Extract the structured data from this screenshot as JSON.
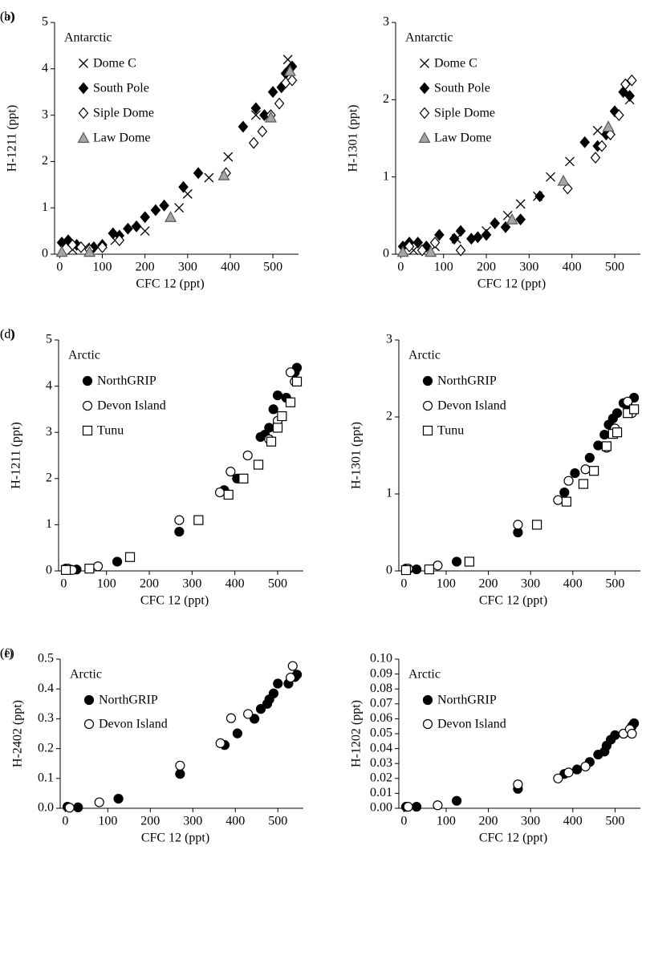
{
  "chart_data": [
    {
      "type": "scatter",
      "label": "(a)",
      "legend_title": "Antarctic",
      "x_label": "CFC 12 (ppt)",
      "y_label": "H-1211 (ppt)",
      "xlim": [
        -12,
        560
      ],
      "xticks": [
        0,
        100,
        200,
        300,
        400,
        500
      ],
      "ylim": [
        0,
        5
      ],
      "yticks": [
        0,
        1,
        2,
        3,
        4,
        5
      ],
      "series": [
        {
          "name": "Dome C",
          "marker": "cross",
          "color": "#000000",
          "fill": "none",
          "x": [
            30,
            60,
            130,
            200,
            280,
            300,
            350,
            395,
            460,
            535,
            540
          ],
          "y": [
            0.1,
            0.15,
            0.3,
            0.5,
            1.0,
            1.3,
            1.65,
            2.1,
            3.0,
            4.2,
            3.9
          ]
        },
        {
          "name": "South Pole",
          "marker": "diamond",
          "color": "#000000",
          "fill": "#000000",
          "x": [
            5,
            20,
            40,
            80,
            100,
            125,
            140,
            160,
            180,
            200,
            225,
            245,
            290,
            325,
            430,
            460,
            480,
            500,
            520,
            530,
            540,
            545
          ],
          "y": [
            0.25,
            0.3,
            0.2,
            0.15,
            0.2,
            0.45,
            0.4,
            0.55,
            0.6,
            0.8,
            0.95,
            1.05,
            1.45,
            1.75,
            2.75,
            3.15,
            3.0,
            3.5,
            3.6,
            3.9,
            4.0,
            4.05
          ]
        },
        {
          "name": "Siple Dome",
          "marker": "diamond",
          "color": "#000000",
          "fill": "#ffffff",
          "x": [
            30,
            50,
            70,
            100,
            140,
            390,
            455,
            475,
            495,
            515,
            530,
            545
          ],
          "y": [
            0.2,
            0.15,
            0.1,
            0.15,
            0.3,
            1.75,
            2.4,
            2.65,
            3.0,
            3.25,
            3.7,
            3.75
          ]
        },
        {
          "name": "Law Dome",
          "marker": "triangle",
          "color": "#595959",
          "fill": "#a6a6a6",
          "x": [
            5,
            70,
            260,
            385,
            495,
            540
          ],
          "y": [
            0.05,
            0.05,
            0.8,
            1.7,
            2.95,
            3.95
          ]
        }
      ]
    },
    {
      "type": "scatter",
      "label": "(b)",
      "legend_title": "Antarctic",
      "x_label": "CFC 12 (ppt)",
      "y_label": "H-1301 (ppt)",
      "xlim": [
        -12,
        560
      ],
      "xticks": [
        0,
        100,
        200,
        300,
        400,
        500
      ],
      "ylim": [
        0,
        3
      ],
      "yticks": [
        0,
        1,
        2,
        3
      ],
      "series": [
        {
          "name": "Dome C",
          "marker": "cross",
          "color": "#000000",
          "fill": "none",
          "x": [
            30,
            80,
            130,
            200,
            250,
            280,
            320,
            350,
            395,
            460,
            535
          ],
          "y": [
            0.05,
            0.1,
            0.2,
            0.3,
            0.5,
            0.65,
            0.75,
            1.0,
            1.2,
            1.6,
            2.0
          ]
        },
        {
          "name": "South Pole",
          "marker": "diamond",
          "color": "#000000",
          "fill": "#000000",
          "x": [
            5,
            20,
            40,
            60,
            90,
            125,
            140,
            165,
            180,
            200,
            220,
            245,
            280,
            325,
            430,
            460,
            480,
            500,
            520,
            535
          ],
          "y": [
            0.1,
            0.15,
            0.15,
            0.1,
            0.25,
            0.2,
            0.3,
            0.2,
            0.22,
            0.25,
            0.4,
            0.35,
            0.45,
            0.75,
            1.45,
            1.4,
            1.55,
            1.85,
            2.1,
            2.05
          ]
        },
        {
          "name": "Siple Dome",
          "marker": "diamond",
          "color": "#000000",
          "fill": "#ffffff",
          "x": [
            20,
            50,
            80,
            140,
            390,
            455,
            470,
            490,
            510,
            525,
            540
          ],
          "y": [
            0.1,
            0.05,
            0.15,
            0.05,
            0.85,
            1.25,
            1.4,
            1.55,
            1.8,
            2.2,
            2.25
          ]
        },
        {
          "name": "Law Dome",
          "marker": "triangle",
          "color": "#595959",
          "fill": "#a6a6a6",
          "x": [
            5,
            70,
            260,
            380,
            485
          ],
          "y": [
            0.03,
            0.03,
            0.45,
            0.95,
            1.65
          ]
        }
      ]
    },
    {
      "type": "scatter",
      "label": "(c)",
      "legend_title": "Arctic",
      "x_label": "CFC 12 (ppt)",
      "y_label": "H-1211 (ppt)",
      "xlim": [
        -12,
        560
      ],
      "xticks": [
        0,
        100,
        200,
        300,
        400,
        500
      ],
      "ylim": [
        0,
        5
      ],
      "yticks": [
        0,
        1,
        2,
        3,
        4,
        5
      ],
      "series": [
        {
          "name": "NorthGRIP",
          "marker": "circle",
          "color": "#000000",
          "fill": "#000000",
          "x": [
            5,
            10,
            15,
            30,
            125,
            270,
            375,
            405,
            460,
            470,
            480,
            490,
            500,
            520,
            540,
            545
          ],
          "y": [
            0.05,
            0.03,
            0.03,
            0.03,
            0.2,
            0.85,
            1.75,
            2.0,
            2.9,
            2.95,
            3.1,
            3.5,
            3.8,
            3.75,
            4.3,
            4.4
          ]
        },
        {
          "name": "Devon Island",
          "marker": "circle",
          "color": "#000000",
          "fill": "#ffffff",
          "x": [
            10,
            20,
            80,
            270,
            365,
            390,
            430,
            480,
            500,
            530,
            540
          ],
          "y": [
            0.05,
            0.02,
            0.1,
            1.1,
            1.7,
            2.15,
            2.5,
            2.85,
            3.25,
            4.3,
            4.1
          ]
        },
        {
          "name": "Tunu",
          "marker": "square",
          "color": "#000000",
          "fill": "#ffffff",
          "x": [
            5,
            60,
            155,
            315,
            385,
            420,
            455,
            485,
            500,
            510,
            530,
            545
          ],
          "y": [
            0.02,
            0.05,
            0.3,
            1.1,
            1.65,
            2.0,
            2.3,
            2.8,
            3.1,
            3.35,
            3.65,
            4.1
          ]
        }
      ]
    },
    {
      "type": "scatter",
      "label": "(d)",
      "legend_title": "Arctic",
      "x_label": "CFC 12 (ppt)",
      "y_label": "H-1301 (ppt)",
      "xlim": [
        -12,
        560
      ],
      "xticks": [
        0,
        100,
        200,
        300,
        400,
        500
      ],
      "ylim": [
        0,
        3
      ],
      "yticks": [
        0,
        1,
        2,
        3
      ],
      "series": [
        {
          "name": "NorthGRIP",
          "marker": "circle",
          "color": "#000000",
          "fill": "#000000",
          "x": [
            5,
            10,
            30,
            125,
            270,
            380,
            405,
            440,
            460,
            475,
            485,
            495,
            505,
            520,
            530,
            545
          ],
          "y": [
            0.03,
            0.02,
            0.02,
            0.12,
            0.5,
            1.02,
            1.27,
            1.47,
            1.63,
            1.77,
            1.9,
            1.98,
            2.05,
            2.18,
            2.15,
            2.25
          ]
        },
        {
          "name": "Devon Island",
          "marker": "circle",
          "color": "#000000",
          "fill": "#ffffff",
          "x": [
            10,
            80,
            270,
            365,
            390,
            430,
            480,
            500,
            530,
            540
          ],
          "y": [
            0.03,
            0.07,
            0.6,
            0.92,
            1.17,
            1.32,
            1.6,
            1.85,
            2.2,
            2.05
          ]
        },
        {
          "name": "Tunu",
          "marker": "square",
          "color": "#000000",
          "fill": "#ffffff",
          "x": [
            5,
            60,
            155,
            315,
            385,
            425,
            450,
            480,
            495,
            505,
            530,
            545
          ],
          "y": [
            0.01,
            0.02,
            0.12,
            0.6,
            0.9,
            1.13,
            1.3,
            1.62,
            1.78,
            1.8,
            2.05,
            2.1
          ]
        }
      ]
    },
    {
      "type": "scatter",
      "label": "(e)",
      "legend_title": "Arctic",
      "x_label": "CFC 12 (ppt)",
      "y_label": "H-2402 (ppt)",
      "xlim": [
        -12,
        560
      ],
      "xticks": [
        0,
        100,
        200,
        300,
        400,
        500
      ],
      "ylim": [
        0,
        0.5
      ],
      "yticks": [
        {
          "value": 0,
          "label": "0.0"
        },
        0.1,
        0.2,
        0.3,
        0.4,
        0.5
      ],
      "series": [
        {
          "name": "NorthGRIP",
          "marker": "circle",
          "color": "#000000",
          "fill": "#000000",
          "x": [
            5,
            30,
            125,
            270,
            375,
            405,
            445,
            460,
            475,
            480,
            490,
            500,
            525,
            540,
            545
          ],
          "y": [
            0.005,
            0.003,
            0.032,
            0.115,
            0.212,
            0.251,
            0.3,
            0.333,
            0.35,
            0.365,
            0.385,
            0.418,
            0.418,
            0.44,
            0.448
          ]
        },
        {
          "name": "Devon Island",
          "marker": "circle",
          "color": "#000000",
          "fill": "#ffffff",
          "x": [
            10,
            80,
            270,
            365,
            390,
            430,
            530,
            535
          ],
          "y": [
            0.002,
            0.02,
            0.143,
            0.218,
            0.302,
            0.316,
            0.438,
            0.477
          ]
        }
      ]
    },
    {
      "type": "scatter",
      "label": "(f)",
      "legend_title": "Arctic",
      "x_label": "CFC 12 (ppt)",
      "y_label": "H-1202 (ppt)",
      "xlim": [
        -12,
        560
      ],
      "xticks": [
        0,
        100,
        200,
        300,
        400,
        500
      ],
      "ylim": [
        0,
        0.1
      ],
      "yticks": [
        {
          "value": 0,
          "label": "0.00"
        },
        {
          "value": 0.01,
          "label": "0.01"
        },
        {
          "value": 0.02,
          "label": "0.02"
        },
        {
          "value": 0.03,
          "label": "0.03"
        },
        {
          "value": 0.04,
          "label": "0.04"
        },
        {
          "value": 0.05,
          "label": "0.05"
        },
        {
          "value": 0.06,
          "label": "0.06"
        },
        {
          "value": 0.07,
          "label": "0.07"
        },
        {
          "value": 0.08,
          "label": "0.08"
        },
        {
          "value": 0.09,
          "label": "0.09"
        },
        {
          "value": 0.1,
          "label": "0.10"
        }
      ],
      "series": [
        {
          "name": "NorthGRIP",
          "marker": "circle",
          "color": "#000000",
          "fill": "#000000",
          "x": [
            5,
            30,
            125,
            270,
            380,
            410,
            440,
            460,
            475,
            480,
            490,
            500,
            520,
            540,
            545
          ],
          "y": [
            0.001,
            0.001,
            0.005,
            0.013,
            0.023,
            0.026,
            0.031,
            0.036,
            0.038,
            0.042,
            0.046,
            0.049,
            0.05,
            0.055,
            0.057
          ]
        },
        {
          "name": "Devon Island",
          "marker": "circle",
          "color": "#000000",
          "fill": "#ffffff",
          "x": [
            10,
            80,
            270,
            365,
            390,
            430,
            520,
            535,
            540
          ],
          "y": [
            0.001,
            0.002,
            0.016,
            0.02,
            0.024,
            0.028,
            0.05,
            0.053,
            0.05
          ]
        }
      ]
    }
  ]
}
